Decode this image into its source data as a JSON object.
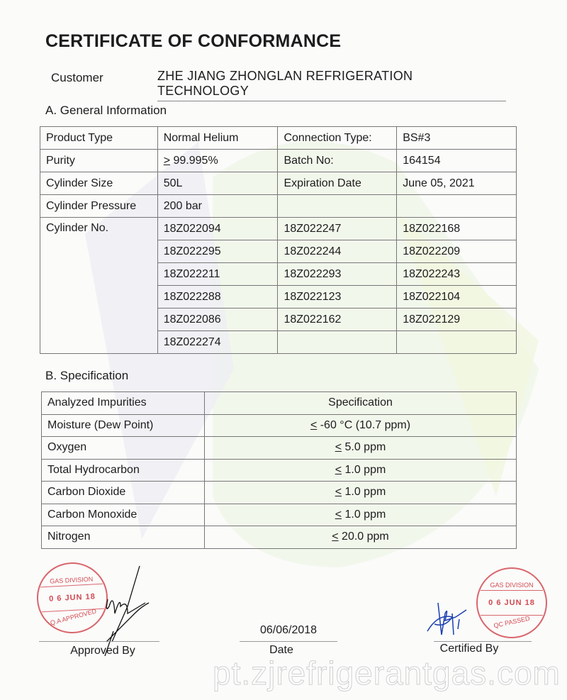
{
  "title": "CERTIFICATE OF CONFORMANCE",
  "customer": {
    "label": "Customer",
    "name": "ZHE JIANG  ZHONGLAN REFRIGERATION TECHNOLOGY"
  },
  "general": {
    "heading": "A. General Information",
    "rows": [
      [
        "Product Type",
        "Normal Helium",
        "Connection Type:",
        "BS#3"
      ],
      [
        "Purity",
        "99.995%",
        "Batch No:",
        "164154"
      ],
      [
        "Cylinder Size",
        "50L",
        "Expiration Date",
        "June 05, 2021"
      ],
      [
        "Cylinder Pressure",
        "200 bar",
        "",
        ""
      ]
    ],
    "purity_prefix": ">",
    "cylinder_label": "Cylinder No.",
    "cylinders": [
      [
        "18Z022094",
        "18Z022247",
        "18Z022168"
      ],
      [
        "18Z022295",
        "18Z022244",
        "18Z022209"
      ],
      [
        "18Z022211",
        "18Z022293",
        "18Z022243"
      ],
      [
        "18Z022288",
        "18Z022123",
        "18Z022104"
      ],
      [
        "18Z022086",
        "18Z022162",
        "18Z022129"
      ],
      [
        "18Z022274",
        "",
        ""
      ]
    ]
  },
  "specification": {
    "heading": "B. Specification",
    "headers": [
      "Analyzed Impurities",
      "Specification"
    ],
    "prefix": "<",
    "rows": [
      [
        "Moisture (Dew Point)",
        " -60 °C (10.7 ppm)"
      ],
      [
        "Oxygen",
        " 5.0 ppm"
      ],
      [
        "Total Hydrocarbon",
        " 1.0 ppm"
      ],
      [
        "Carbon Dioxide",
        " 1.0 ppm"
      ],
      [
        "Carbon Monoxide",
        " 1.0 ppm"
      ],
      [
        "Nitrogen",
        " 20.0 ppm"
      ]
    ]
  },
  "signatures": {
    "approved_by": "Approved By",
    "date_label": "Date",
    "date_value": "06/06/2018",
    "certified_by": "Certified By"
  },
  "stamps": {
    "left": {
      "top": "GAS DIVISION",
      "date": "0 6  JUN  18",
      "bottom": "Q.A APPROVED"
    },
    "right": {
      "top": "GAS DIVISION",
      "date": "0 6  JUN  18",
      "bottom": "QC PASSED"
    },
    "color": "#d24a52"
  },
  "watermark": "pt.zjrefrigerantgas.com"
}
